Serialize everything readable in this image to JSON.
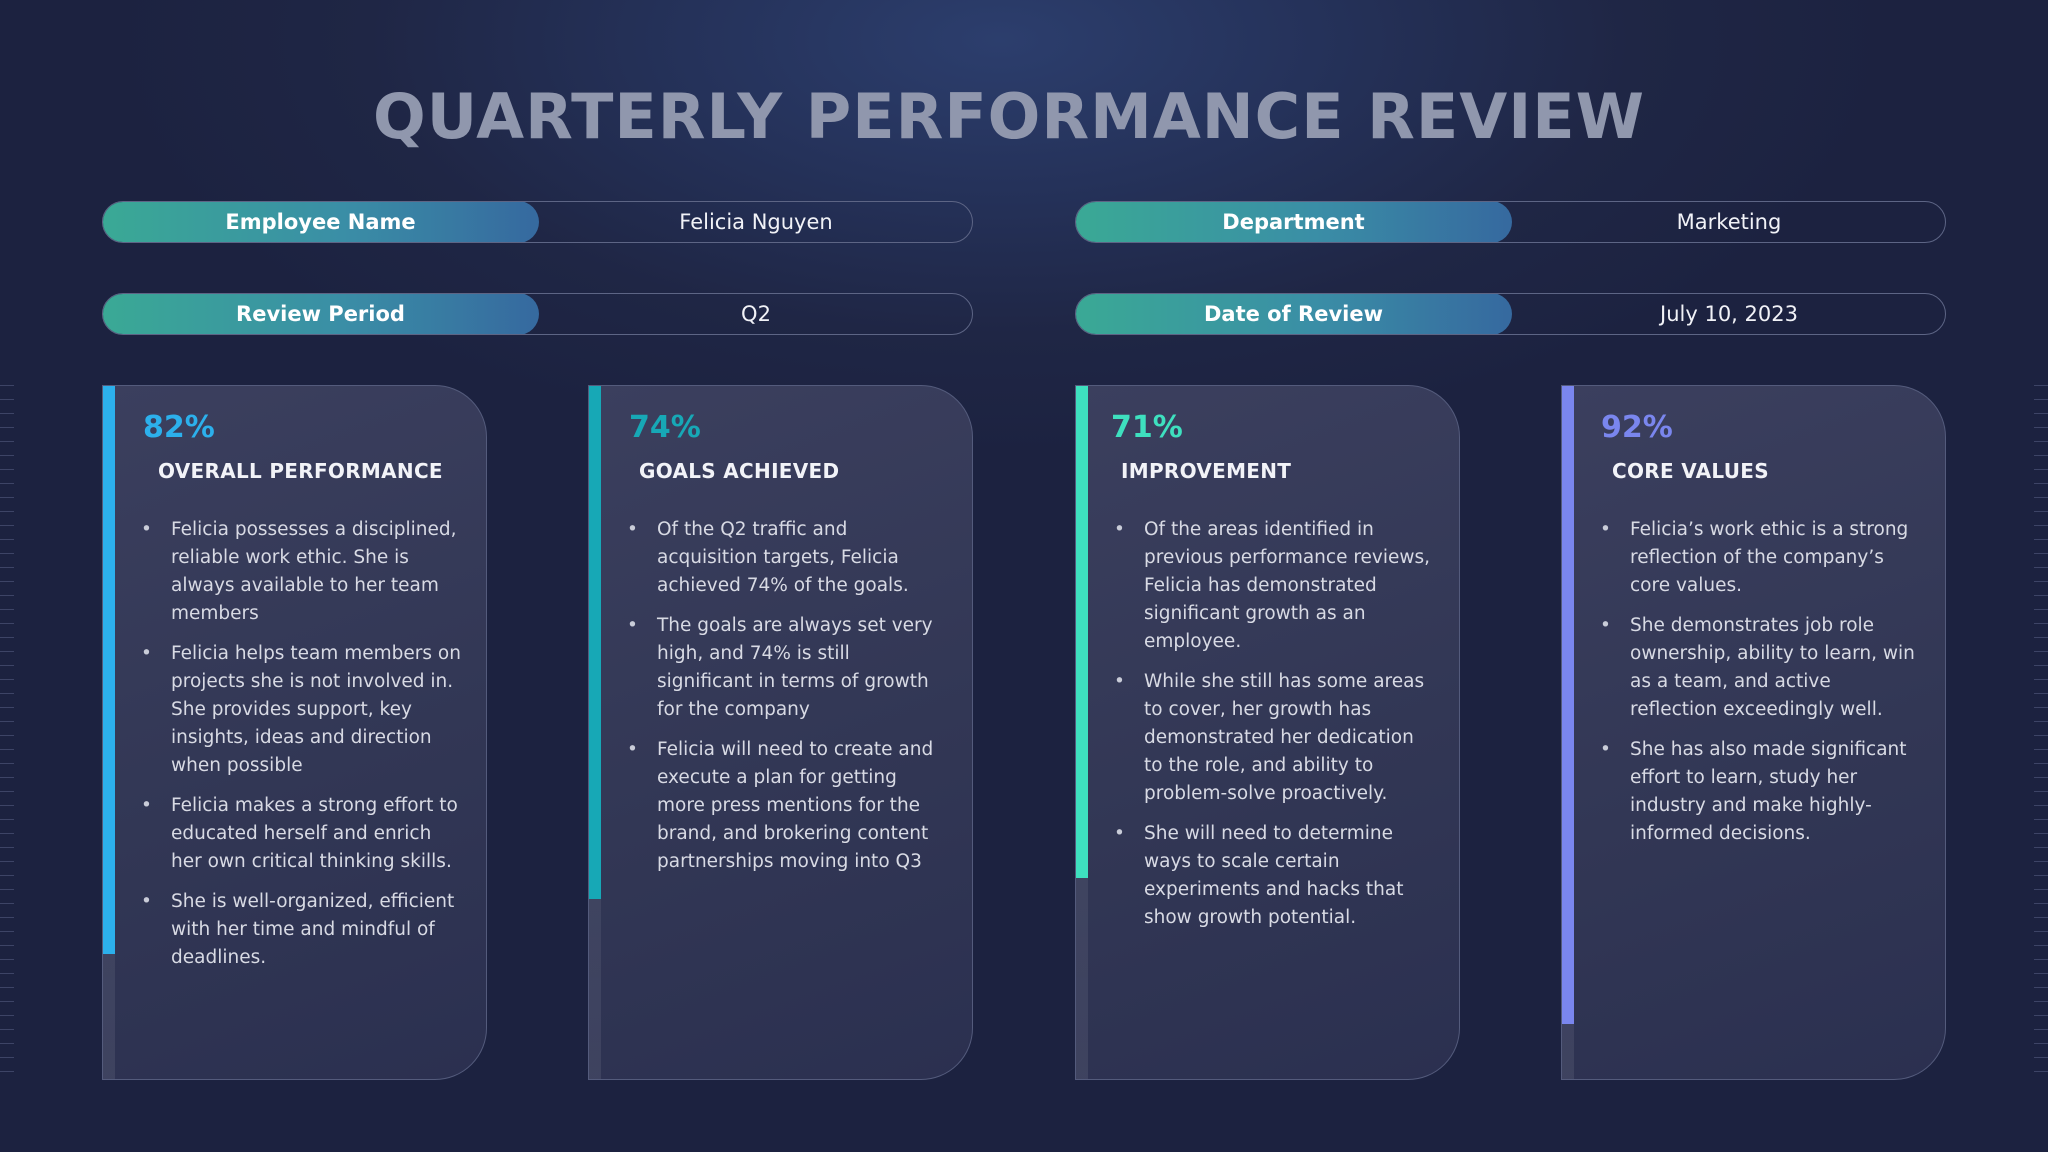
{
  "title": "QUARTERLY PERFORMANCE REVIEW",
  "fields": [
    {
      "label": "Employee Name",
      "value": "Felicia Nguyen"
    },
    {
      "label": "Department",
      "value": "Marketing"
    },
    {
      "label": "Review Period",
      "value": "Q2"
    },
    {
      "label": "Date of Review",
      "value": "July 10, 2023"
    }
  ],
  "cards": [
    {
      "percent": "82%",
      "fill": 0.82,
      "heading": "OVERALL PERFORMANCE",
      "accent": "#2cb0ec",
      "bullets": [
        "Felicia possesses a disciplined, reliable work ethic. She is always available to her team members",
        "Felicia helps team members on projects she is not involved in. She provides support, key insights, ideas and direction when possible",
        "Felicia makes a strong effort to educated herself and enrich her own critical thinking skills.",
        "She is well-organized, efficient with her time and mindful of deadlines."
      ]
    },
    {
      "percent": "74%",
      "fill": 0.74,
      "heading": "GOALS ACHIEVED",
      "accent": "#17a8b6",
      "bullets": [
        "Of the Q2 traffic and acquisition targets, Felicia achieved 74% of the goals.",
        "The goals are always set very high, and 74% is still significant in terms of growth for the company",
        "Felicia will need to create and execute a plan for getting more press mentions for the brand, and brokering content partnerships moving into Q3"
      ]
    },
    {
      "percent": "71%",
      "fill": 0.71,
      "heading": "IMPROVEMENT",
      "accent": "#3ee0bf",
      "bullets": [
        "Of the areas identified in previous performance reviews, Felicia has demonstrated significant growth as an employee.",
        "While she still has some areas to cover, her growth has demonstrated her dedication to the role, and ability to problem-solve proactively.",
        "She will need to determine ways to scale certain experiments and hacks that show growth potential."
      ]
    },
    {
      "percent": "92%",
      "fill": 0.92,
      "heading": "CORE VALUES",
      "accent": "#7a86ee",
      "bullets": [
        "Felicia’s work ethic is a strong reflection of the company’s core values.",
        "She demonstrates job role ownership, ability to learn, win as a team, and active reflection exceedingly well.",
        "She has also made significant effort to learn, study her industry and make highly-informed decisions."
      ]
    }
  ]
}
